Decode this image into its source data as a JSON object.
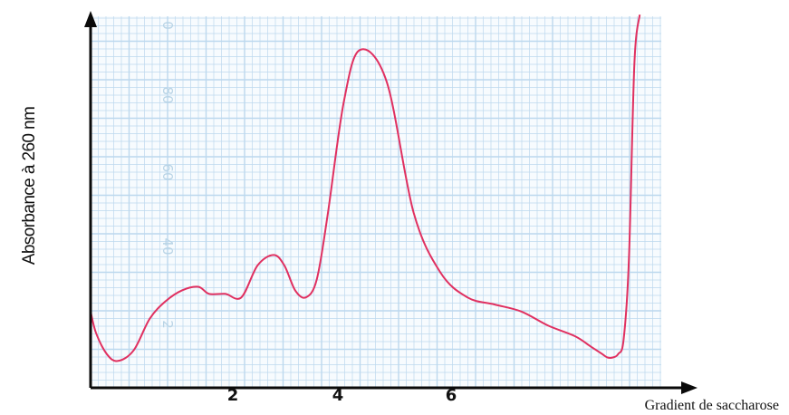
{
  "chart_data": {
    "type": "line",
    "title": "",
    "xlabel": "Gradient de saccharose",
    "ylabel": "Absorbance à 260 nm",
    "x_ticks": [
      "2",
      "4",
      "6"
    ],
    "paper_scale_ticks": [
      "0",
      "80",
      "60",
      "40",
      "2"
    ],
    "grid": true,
    "xlim": [
      0,
      10.6
    ],
    "ylim": [
      0,
      100
    ],
    "series": [
      {
        "x": [
          0,
          0.1,
          0.3,
          0.5,
          0.8,
          1.1,
          1.4,
          1.7,
          2.0,
          2.2,
          2.5,
          2.8,
          3.1,
          3.4,
          3.6,
          3.8,
          4.0,
          4.2,
          4.4,
          4.7,
          5.0,
          5.5,
          6.0,
          6.5,
          7.0,
          7.5,
          8.0,
          8.5,
          9.0,
          9.3,
          9.5,
          9.6,
          9.7,
          9.8,
          9.9,
          10.0,
          10.1,
          10.2
        ],
        "values": [
          18,
          12,
          6,
          4,
          7,
          16,
          21,
          24,
          25,
          23,
          23,
          22,
          31,
          34,
          31,
          24,
          22,
          27,
          45,
          77,
          92,
          83,
          46,
          29,
          22,
          20,
          18,
          14,
          11,
          8,
          6,
          5,
          5,
          6,
          10,
          33,
          88,
          102
        ]
      }
    ]
  },
  "colors": {
    "curve": "#e03060",
    "grid": "#bcd8ee",
    "axis": "#0a0a0a",
    "paper": "#f7fbfe"
  }
}
